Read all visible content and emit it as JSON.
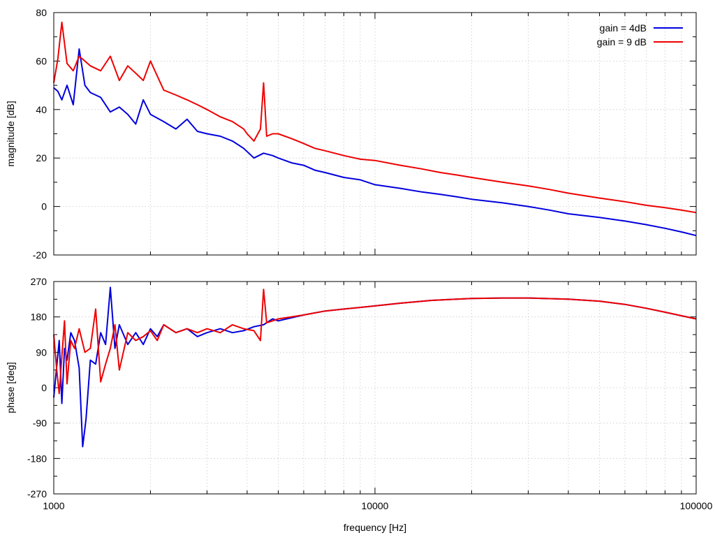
{
  "chart_data": [
    {
      "type": "line",
      "xscale": "log",
      "xlim": [
        1000,
        100000
      ],
      "ylim": [
        -20,
        80
      ],
      "ylabel": "magnitude [dB]",
      "yticks": [
        -20,
        0,
        20,
        40,
        60,
        80
      ],
      "grid": true,
      "legend": "top-right",
      "series": [
        {
          "name": "gain = 4dB",
          "color": "#0000dd",
          "x": [
            1000,
            1030,
            1060,
            1100,
            1150,
            1200,
            1250,
            1300,
            1400,
            1500,
            1600,
            1700,
            1800,
            1900,
            2000,
            2200,
            2400,
            2600,
            2800,
            3000,
            3300,
            3600,
            3900,
            4200,
            4500,
            4800,
            5000,
            5500,
            6000,
            6500,
            7000,
            8000,
            9000,
            10000,
            12000,
            14000,
            16000,
            18000,
            20000,
            25000,
            30000,
            35000,
            40000,
            50000,
            60000,
            70000,
            80000,
            90000,
            100000
          ],
          "y": [
            49,
            47.5,
            44,
            50,
            42,
            65,
            50,
            47,
            45,
            39,
            41,
            38,
            34,
            44,
            38,
            35,
            32,
            36,
            31,
            30,
            29,
            27,
            24,
            20,
            22,
            21,
            20,
            18,
            17,
            15,
            14,
            12,
            11,
            9,
            7.5,
            6,
            5,
            4,
            3,
            1.5,
            0,
            -1.5,
            -3,
            -4.5,
            -6,
            -7.5,
            -9,
            -10.5,
            -12
          ]
        },
        {
          "name": "gain = 9 dB",
          "color": "#ee0000",
          "x": [
            1000,
            1030,
            1060,
            1100,
            1150,
            1200,
            1250,
            1300,
            1400,
            1500,
            1600,
            1700,
            1800,
            1900,
            2000,
            2200,
            2400,
            2600,
            2800,
            3000,
            3300,
            3600,
            3900,
            4000,
            4200,
            4400,
            4500,
            4600,
            4800,
            5000,
            5500,
            6000,
            6500,
            7000,
            8000,
            9000,
            10000,
            12000,
            14000,
            16000,
            18000,
            20000,
            25000,
            30000,
            35000,
            40000,
            50000,
            60000,
            70000,
            80000,
            90000,
            100000
          ],
          "y": [
            51,
            61,
            76,
            59,
            56,
            62,
            60,
            58,
            56,
            62,
            52,
            58,
            55,
            52,
            60,
            48,
            46,
            44,
            42,
            40,
            37,
            35,
            32,
            30,
            27,
            32,
            51,
            29,
            30,
            30,
            28,
            26,
            24,
            23,
            21,
            19.5,
            19,
            17,
            15.5,
            14,
            13,
            12,
            10,
            8.5,
            7,
            5.5,
            3.5,
            2,
            0.5,
            -0.5,
            -1.5,
            -2.5
          ]
        }
      ]
    },
    {
      "type": "line",
      "xscale": "log",
      "xlim": [
        1000,
        100000
      ],
      "ylim": [
        -270,
        270
      ],
      "xlabel": "frequency [Hz]",
      "ylabel": "phase [deg]",
      "xticks": [
        1000,
        10000,
        100000
      ],
      "yticks": [
        -270,
        -180,
        -90,
        0,
        90,
        180,
        270
      ],
      "grid": true,
      "series": [
        {
          "name": "gain = 4dB",
          "color": "#0000dd",
          "x": [
            1000,
            1020,
            1040,
            1060,
            1080,
            1100,
            1130,
            1160,
            1200,
            1230,
            1260,
            1300,
            1350,
            1400,
            1450,
            1500,
            1550,
            1600,
            1700,
            1800,
            1900,
            2000,
            2100,
            2200,
            2400,
            2600,
            2800,
            3000,
            3300,
            3600,
            3900,
            4200,
            4500,
            4800,
            5000,
            6000,
            7000,
            8000,
            10000,
            12000,
            15000,
            20000,
            25000,
            30000,
            40000,
            50000,
            60000,
            70000,
            80000,
            90000,
            100000
          ],
          "y": [
            -25,
            50,
            120,
            -40,
            100,
            70,
            140,
            120,
            50,
            -150,
            -80,
            70,
            60,
            140,
            110,
            255,
            100,
            160,
            110,
            140,
            110,
            150,
            130,
            160,
            140,
            150,
            130,
            140,
            150,
            140,
            145,
            155,
            160,
            175,
            170,
            185,
            195,
            200,
            208,
            215,
            222,
            227,
            228,
            228,
            225,
            220,
            212,
            202,
            192,
            183,
            175
          ]
        },
        {
          "name": "gain = 9 dB",
          "color": "#ee0000",
          "x": [
            1000,
            1020,
            1040,
            1060,
            1080,
            1100,
            1130,
            1160,
            1200,
            1250,
            1300,
            1350,
            1400,
            1450,
            1500,
            1550,
            1600,
            1700,
            1800,
            1900,
            2000,
            2100,
            2200,
            2400,
            2600,
            2800,
            3000,
            3300,
            3600,
            3900,
            4200,
            4400,
            4500,
            4600,
            4800,
            5000,
            6000,
            7000,
            8000,
            10000,
            12000,
            15000,
            20000,
            25000,
            30000,
            40000,
            50000,
            60000,
            70000,
            80000,
            90000,
            100000
          ],
          "y": [
            135,
            50,
            -15,
            80,
            170,
            10,
            120,
            100,
            150,
            90,
            100,
            200,
            15,
            60,
            100,
            160,
            45,
            140,
            120,
            130,
            145,
            120,
            160,
            140,
            150,
            140,
            150,
            140,
            160,
            150,
            145,
            120,
            250,
            165,
            170,
            175,
            185,
            195,
            200,
            208,
            215,
            222,
            227,
            228,
            228,
            225,
            220,
            212,
            202,
            192,
            183,
            175
          ]
        }
      ]
    }
  ]
}
